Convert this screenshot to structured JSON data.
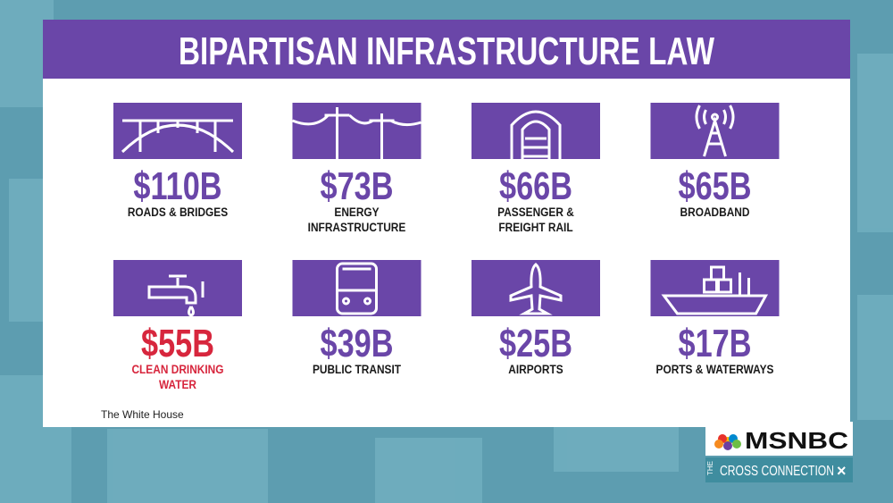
{
  "title": "BIPARTISAN INFRASTRUCTURE LAW",
  "items": [
    {
      "amount": "$110B",
      "label": [
        "ROADS & BRIDGES"
      ],
      "color": "#6a46a8"
    },
    {
      "amount": "$73B",
      "label": [
        "ENERGY",
        "INFRASTRUCTURE"
      ],
      "color": "#6a46a8"
    },
    {
      "amount": "$66B",
      "label": [
        "PASSENGER &",
        "FREIGHT RAIL"
      ],
      "color": "#6a46a8"
    },
    {
      "amount": "$65B",
      "label": [
        "BROADBAND"
      ],
      "color": "#6a46a8"
    },
    {
      "amount": "$55B",
      "label": [
        "CLEAN DRINKING",
        "WATER"
      ],
      "color": "#d7263d"
    },
    {
      "amount": "$39B",
      "label": [
        "PUBLIC TRANSIT"
      ],
      "color": "#6a46a8"
    },
    {
      "amount": "$25B",
      "label": [
        "AIRPORTS"
      ],
      "color": "#6a46a8"
    },
    {
      "amount": "$17B",
      "label": [
        "PORTS & WATERWAYS"
      ],
      "color": "#6a46a8"
    }
  ],
  "source": "The White House",
  "logo": {
    "network": "MSNBC",
    "show_prefix": "THE",
    "show": "CROSS CONNECTION"
  }
}
